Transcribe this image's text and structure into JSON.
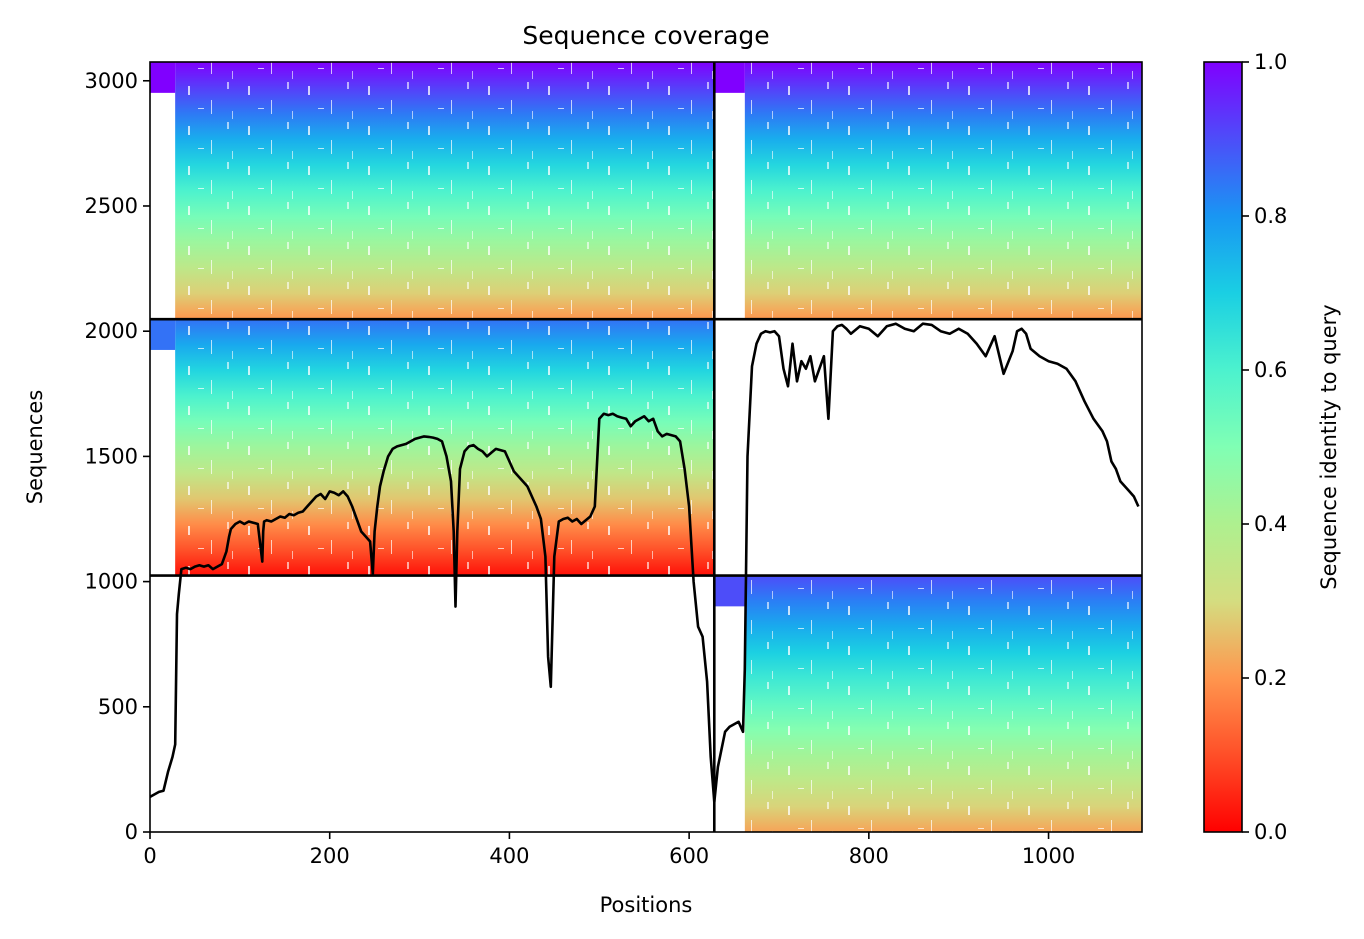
{
  "chart_data": {
    "type": "heatmap",
    "title": "Sequence coverage",
    "xlabel": "Positions",
    "ylabel": "Sequences",
    "xlim": [
      0,
      1104
    ],
    "ylim": [
      0,
      3075
    ],
    "x_ticks": [
      "0",
      "200",
      "400",
      "600",
      "800",
      "1000"
    ],
    "y_ticks": [
      "0",
      "500",
      "1000",
      "1500",
      "2000",
      "2500",
      "3000"
    ],
    "colorbar": {
      "label": "Sequence identity to query",
      "ticks": [
        "0.0",
        "0.2",
        "0.4",
        "0.6",
        "0.8",
        "1.0"
      ],
      "colormap": "rainbow",
      "range": [
        0,
        1
      ]
    },
    "grid": false,
    "chain_boundaries": {
      "positions": [
        628
      ],
      "sequences": [
        1024,
        2048
      ]
    },
    "blocks": [
      {
        "name": "chain-1 pair",
        "x": [
          0,
          628
        ],
        "y": [
          2048,
          3075
        ],
        "start": 28,
        "identity_top": 1.0,
        "identity_bottom": 0.2
      },
      {
        "name": "chain-2 pair",
        "x": [
          628,
          1104
        ],
        "y": [
          2048,
          3075
        ],
        "start": 662,
        "identity_top": 1.0,
        "identity_bottom": 0.2
      },
      {
        "name": "chain-1 unpaired",
        "x": [
          0,
          628
        ],
        "y": [
          1024,
          2048
        ],
        "start": 28,
        "identity_top": 0.85,
        "identity_bottom": 0.02
      },
      {
        "name": "chain-2 unpaired",
        "x": [
          628,
          1104
        ],
        "y": [
          0,
          1024
        ],
        "start": 662,
        "identity_top": 0.9,
        "identity_bottom": 0.22
      }
    ],
    "coverage_line": {
      "x": [
        0,
        5,
        10,
        15,
        20,
        25,
        28,
        30,
        32,
        35,
        40,
        45,
        50,
        55,
        60,
        65,
        70,
        75,
        80,
        85,
        88,
        90,
        95,
        100,
        105,
        110,
        115,
        120,
        125,
        126,
        127,
        130,
        135,
        140,
        145,
        150,
        155,
        160,
        165,
        170,
        175,
        180,
        185,
        190,
        195,
        200,
        205,
        210,
        215,
        220,
        225,
        230,
        235,
        240,
        245,
        248,
        250,
        253,
        256,
        260,
        265,
        270,
        275,
        280,
        285,
        290,
        295,
        300,
        305,
        310,
        315,
        320,
        325,
        330,
        335,
        338,
        340,
        342,
        345,
        350,
        355,
        360,
        365,
        370,
        375,
        380,
        385,
        390,
        395,
        400,
        405,
        410,
        415,
        420,
        425,
        430,
        435,
        440,
        443,
        446,
        450,
        455,
        460,
        465,
        470,
        475,
        480,
        485,
        490,
        495,
        500,
        505,
        510,
        515,
        520,
        525,
        530,
        535,
        540,
        545,
        550,
        555,
        560,
        565,
        570,
        575,
        580,
        585,
        590,
        595,
        600,
        605,
        610,
        615,
        620,
        624,
        628,
        632,
        640,
        645,
        650,
        655,
        660,
        662,
        665,
        670,
        675,
        680,
        685,
        690,
        695,
        700,
        705,
        710,
        715,
        720,
        725,
        730,
        735,
        740,
        745,
        750,
        755,
        760,
        765,
        770,
        775,
        780,
        790,
        800,
        810,
        820,
        830,
        840,
        850,
        860,
        870,
        880,
        890,
        900,
        910,
        920,
        930,
        940,
        950,
        960,
        965,
        970,
        975,
        980,
        990,
        1000,
        1010,
        1020,
        1030,
        1040,
        1050,
        1060,
        1065,
        1070,
        1075,
        1080,
        1085,
        1090,
        1095,
        1100,
        1104
      ],
      "y": [
        140,
        150,
        160,
        165,
        240,
        300,
        350,
        870,
        950,
        1050,
        1055,
        1050,
        1060,
        1065,
        1060,
        1065,
        1050,
        1060,
        1070,
        1120,
        1180,
        1210,
        1230,
        1240,
        1230,
        1240,
        1235,
        1230,
        1080,
        1200,
        1240,
        1245,
        1240,
        1250,
        1260,
        1255,
        1270,
        1265,
        1275,
        1280,
        1300,
        1320,
        1340,
        1350,
        1330,
        1360,
        1355,
        1345,
        1360,
        1340,
        1300,
        1250,
        1200,
        1180,
        1160,
        1030,
        1200,
        1300,
        1380,
        1440,
        1500,
        1530,
        1540,
        1545,
        1550,
        1560,
        1570,
        1575,
        1580,
        1578,
        1575,
        1570,
        1560,
        1500,
        1400,
        1200,
        900,
        1200,
        1450,
        1520,
        1540,
        1545,
        1530,
        1520,
        1500,
        1515,
        1530,
        1525,
        1520,
        1480,
        1440,
        1420,
        1400,
        1380,
        1340,
        1300,
        1250,
        1100,
        700,
        580,
        1100,
        1240,
        1250,
        1255,
        1240,
        1250,
        1230,
        1245,
        1260,
        1300,
        1650,
        1670,
        1665,
        1670,
        1660,
        1655,
        1650,
        1620,
        1640,
        1650,
        1660,
        1640,
        1650,
        1600,
        1580,
        1590,
        1585,
        1580,
        1560,
        1450,
        1300,
        1000,
        820,
        780,
        600,
        300,
        120,
        260,
        400,
        420,
        430,
        440,
        400,
        650,
        1500,
        1860,
        1950,
        1990,
        2000,
        1995,
        2000,
        1980,
        1850,
        1780,
        1950,
        1800,
        1880,
        1850,
        1900,
        1800,
        1850,
        1900,
        1650,
        2000,
        2020,
        2025,
        2010,
        1990,
        2020,
        2010,
        1980,
        2020,
        2030,
        2010,
        2000,
        2030,
        2025,
        2000,
        1990,
        2010,
        1990,
        1950,
        1900,
        1980,
        1830,
        1920,
        2000,
        2010,
        1990,
        1930,
        1900,
        1880,
        1870,
        1850,
        1800,
        1720,
        1650,
        1600,
        1560,
        1480,
        1450,
        1400,
        1380,
        1360,
        1340,
        1300
      ]
    }
  }
}
